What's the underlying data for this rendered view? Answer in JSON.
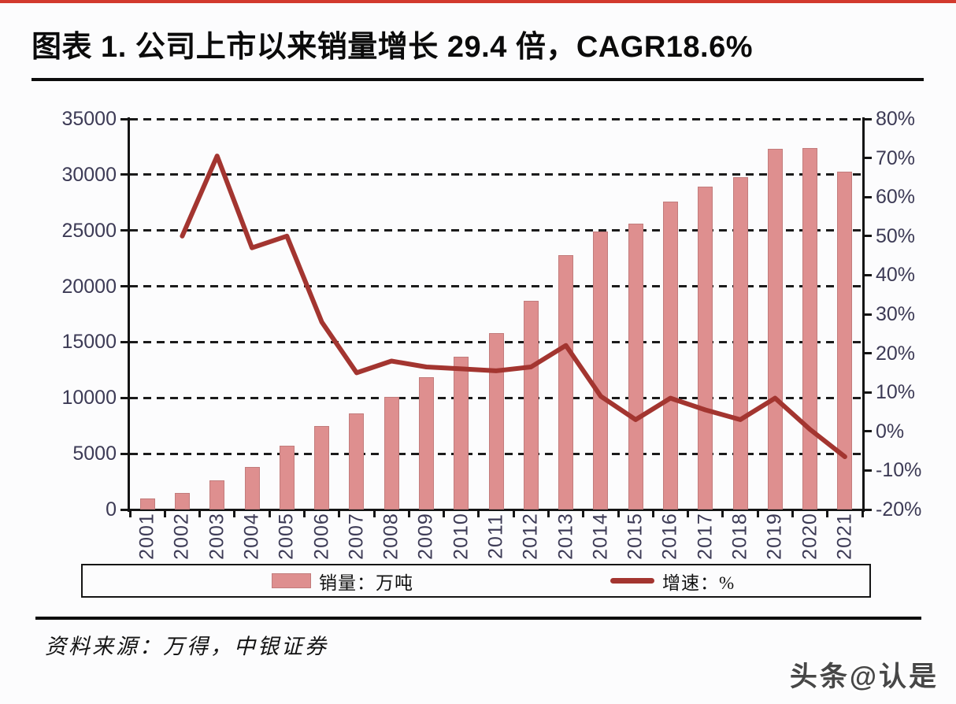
{
  "page": {
    "source_note": "资料来源：万得，中银证券",
    "watermark": "头条@认是"
  },
  "colors": {
    "bar_fill": "#de8f8f",
    "bar_border": "#c27c7c",
    "line": "#a33530",
    "axis_text": "#3c3a55",
    "axis_line": "#141414",
    "top_strip_red": "#d23a2e",
    "background": "#fcfcfd"
  },
  "chart_data": {
    "type": "bar+line",
    "title": "图表 1. 公司上市以来销量增长 29.4 倍，CAGR18.6%",
    "categories": [
      "2001",
      "2002",
      "2003",
      "2004",
      "2005",
      "2006",
      "2007",
      "2008",
      "2009",
      "2010",
      "2011",
      "2012",
      "2013",
      "2014",
      "2015",
      "2016",
      "2017",
      "2018",
      "2019",
      "2020",
      "2021"
    ],
    "series": [
      {
        "name": "销量：万吨",
        "type": "bar",
        "axis": "left",
        "values": [
          1000,
          1450,
          2600,
          3800,
          5700,
          7500,
          8600,
          10100,
          11850,
          13700,
          15800,
          18700,
          22800,
          24900,
          25600,
          27600,
          28900,
          29800,
          32300,
          32400,
          30300
        ]
      },
      {
        "name": "增速：%",
        "type": "line",
        "axis": "right",
        "values": [
          null,
          50,
          70.5,
          47,
          50,
          28,
          15,
          18,
          16.5,
          16,
          15.5,
          16.5,
          22,
          9,
          3,
          8.5,
          5.5,
          3,
          8.5,
          0.5,
          -6.5
        ]
      }
    ],
    "left_axis": {
      "min": 0,
      "max": 35000,
      "tick_step": 5000,
      "tick_labels": [
        "0",
        "5000",
        "10000",
        "15000",
        "20000",
        "25000",
        "30000",
        "35000"
      ]
    },
    "right_axis": {
      "min": -20,
      "max": 80,
      "tick_step": 10,
      "tick_labels": [
        "-20%",
        "-10%",
        "0%",
        "10%",
        "20%",
        "30%",
        "40%",
        "50%",
        "60%",
        "70%",
        "80%"
      ]
    },
    "grid": {
      "horizontal": true,
      "style": "dashed"
    },
    "legend_position": "bottom"
  }
}
